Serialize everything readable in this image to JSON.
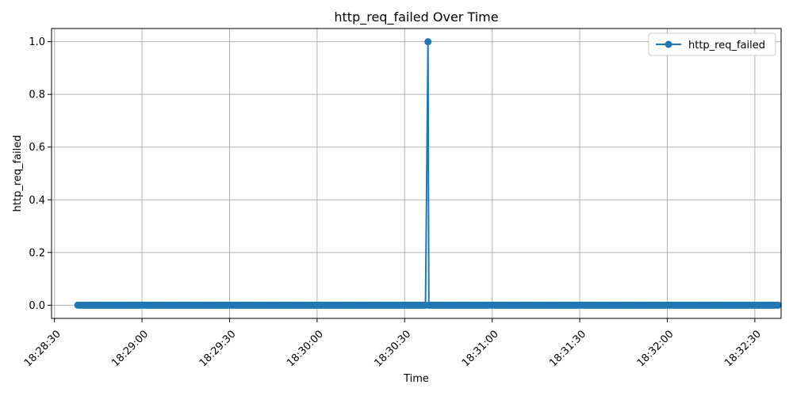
{
  "chart_data": {
    "type": "line",
    "title": "http_req_failed Over Time",
    "xlabel": "Time",
    "ylabel": "http_req_failed",
    "grid": true,
    "legend_position": "top-right",
    "line_color": "#1f77b4",
    "marker": "circle",
    "x_axis": {
      "kind": "time",
      "range": [
        "18:28:29",
        "18:32:39"
      ],
      "ticks": [
        "18:28:30",
        "18:29:00",
        "18:29:30",
        "18:30:00",
        "18:30:30",
        "18:31:00",
        "18:31:30",
        "18:32:00",
        "18:32:30"
      ]
    },
    "y_axis": {
      "range": [
        -0.05,
        1.05
      ],
      "ticks": [
        "0.0",
        "0.2",
        "0.4",
        "0.6",
        "0.8",
        "1.0"
      ]
    },
    "series": [
      {
        "name": "http_req_failed",
        "x_start": "18:28:38",
        "x_end": "18:32:38",
        "points": 420,
        "baseline_value": 0.0,
        "spikes": [
          {
            "x": "18:30:38",
            "y": 1.0
          }
        ]
      }
    ]
  }
}
